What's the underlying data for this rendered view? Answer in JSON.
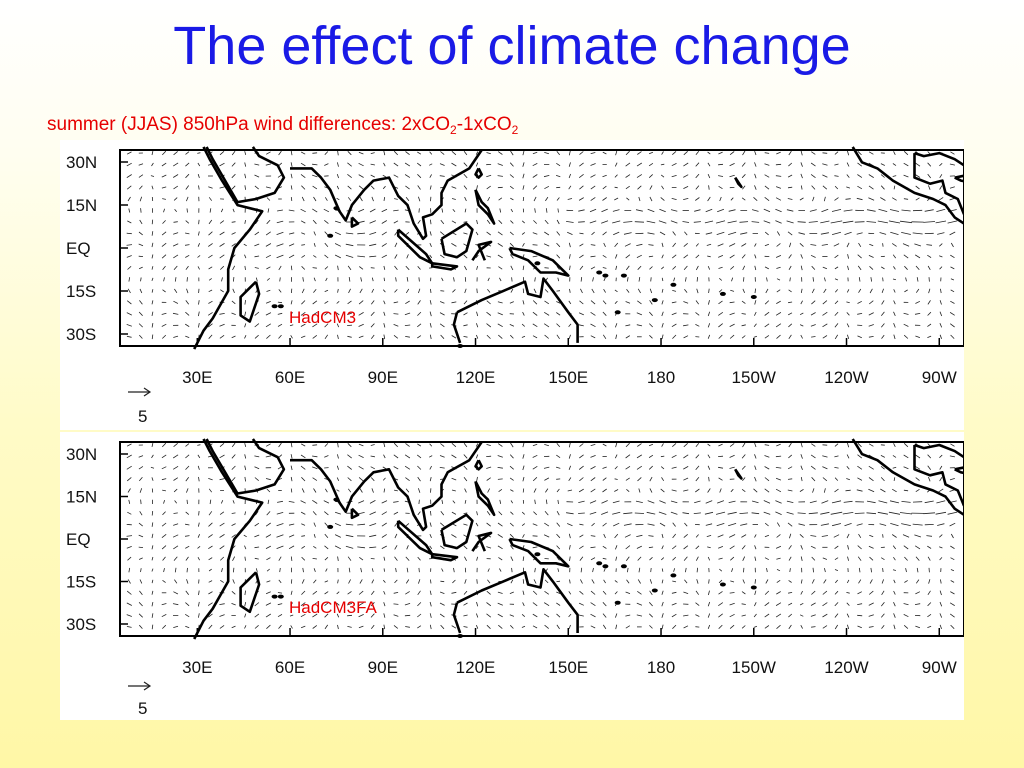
{
  "slide": {
    "title": "The effect of climate change",
    "subtitle": {
      "text": "summer (JJAS) 850hPa wind differences: 2xCO",
      "sub1": "2",
      "mid": "-1xCO",
      "sub2": "2"
    }
  },
  "map": {
    "latitude_labels": [
      "30N",
      "15N",
      "EQ",
      "15S",
      "30S"
    ],
    "longitude_labels": [
      "30E",
      "60E",
      "90E",
      "120E",
      "150E",
      "180",
      "150W",
      "120W",
      "90W"
    ],
    "reference_vector_label": "5",
    "vector_color": "#222222",
    "coastline_color": "#000000"
  },
  "panels": [
    {
      "model": "HadCM3",
      "label_color": "#e60000"
    },
    {
      "model": "HadCM3FA",
      "label_color": "#e60000"
    }
  ]
}
